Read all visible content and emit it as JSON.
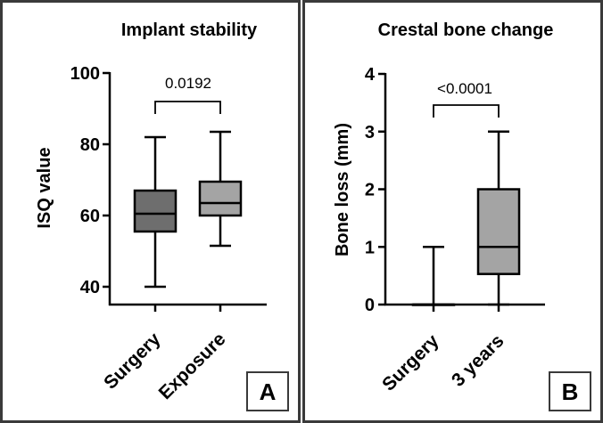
{
  "chart_data": [
    {
      "type": "boxplot",
      "panel_label": "A",
      "title": "Implant stability",
      "xlabel": "",
      "ylabel": "ISQ value",
      "ylim": [
        35,
        100
      ],
      "yticks": [
        40,
        60,
        80,
        100
      ],
      "categories": [
        "Surgery",
        "Exposure"
      ],
      "boxes": [
        {
          "name": "Surgery",
          "min": 40,
          "q1": 55.5,
          "median": 60.5,
          "q3": 67,
          "max": 82,
          "color": "#6e6e6e"
        },
        {
          "name": "Exposure",
          "min": 51.5,
          "q1": 60,
          "median": 63.5,
          "q3": 69.5,
          "max": 83.5,
          "color": "#a4a4a4"
        }
      ],
      "comparison": {
        "between": [
          "Surgery",
          "Exposure"
        ],
        "p_value": "0.0192"
      }
    },
    {
      "type": "boxplot",
      "panel_label": "B",
      "title": "Crestal bone change",
      "xlabel": "",
      "ylabel": "Bone loss (mm)",
      "ylim": [
        0,
        4
      ],
      "yticks": [
        0,
        1,
        2,
        3,
        4
      ],
      "categories": [
        "Surgery",
        "3 years"
      ],
      "boxes": [
        {
          "name": "Surgery",
          "min": 0,
          "q1": 0,
          "median": 0,
          "q3": 0,
          "max": 1,
          "color": "#6e6e6e"
        },
        {
          "name": "3 years",
          "min": 0,
          "q1": 0.53,
          "median": 1,
          "q3": 2,
          "max": 3,
          "color": "#a4a4a4"
        }
      ],
      "comparison": {
        "between": [
          "Surgery",
          "3 years"
        ],
        "p_value": "<0.0001"
      }
    }
  ]
}
